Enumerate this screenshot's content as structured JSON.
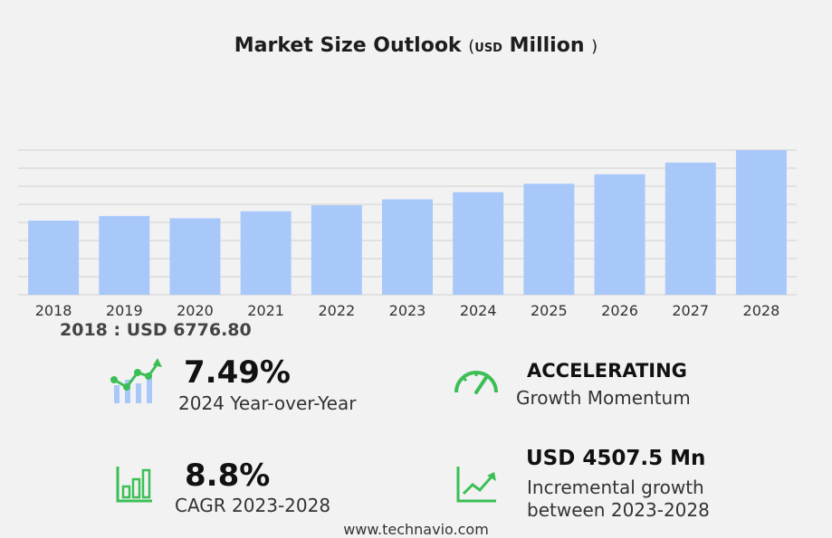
{
  "title": {
    "main": "Market Size Outlook",
    "open_paren": "(",
    "unit": "USD",
    "scale": "Million",
    "close_paren": ")"
  },
  "chart_data": {
    "type": "bar",
    "categories": [
      "2018",
      "2019",
      "2020",
      "2021",
      "2022",
      "2023",
      "2024",
      "2025",
      "2026",
      "2027",
      "2028"
    ],
    "values": [
      6776.8,
      7200,
      6990,
      7630,
      8180,
      8720,
      9370,
      10150,
      11010,
      12080,
      13220
    ],
    "ylim": [
      0,
      13220
    ],
    "grid": true,
    "bar_color": "#a9c8fa"
  },
  "base": {
    "text": "2018 : USD  6776.80"
  },
  "kpis": {
    "yoy": {
      "value": "7.49%",
      "label": "2024 Year-over-Year",
      "icon": "growth-chart-icon"
    },
    "momentum": {
      "value": "ACCELERATING",
      "label": "Growth Momentum",
      "icon": "speedometer-icon"
    },
    "cagr": {
      "value": "8.8%",
      "label": "CAGR 2023-2028",
      "icon": "bar-chart-icon"
    },
    "incremental": {
      "value": "USD 4507.5 Mn",
      "label_line1": "Incremental growth",
      "label_line2": "between 2023-2028",
      "icon": "trend-line-icon"
    }
  },
  "icon_color": "#3bbf55",
  "footer": {
    "text": "www.technavio.com"
  }
}
